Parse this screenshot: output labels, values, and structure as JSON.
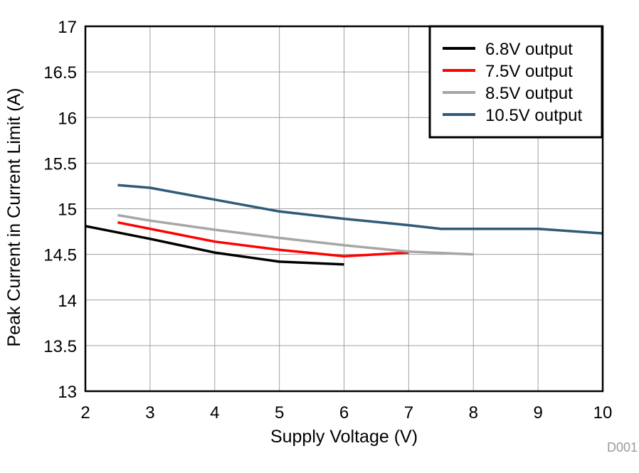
{
  "chart_data": {
    "type": "line",
    "title": "",
    "xlabel": "Supply Voltage (V)",
    "ylabel": "Peak Current in Current Limit (A)",
    "xlim": [
      2,
      10
    ],
    "ylim": [
      13,
      17
    ],
    "x_ticks": [
      2,
      3,
      4,
      5,
      6,
      7,
      8,
      9,
      10
    ],
    "y_ticks": [
      13,
      13.5,
      14,
      14.5,
      15,
      15.5,
      16,
      16.5,
      17
    ],
    "grid": true,
    "legend_position": "top-right",
    "figure_id": "D001",
    "series": [
      {
        "name": "6.8V output",
        "color": "#000000",
        "x": [
          2,
          2.5,
          3,
          4,
          5,
          6
        ],
        "y": [
          14.81,
          14.74,
          14.67,
          14.52,
          14.42,
          14.39
        ]
      },
      {
        "name": "7.5V output",
        "color": "#ff0000",
        "x": [
          2.5,
          3,
          4,
          5,
          6,
          7
        ],
        "y": [
          14.85,
          14.78,
          14.64,
          14.55,
          14.48,
          14.52
        ]
      },
      {
        "name": "8.5V output",
        "color": "#a6a6a6",
        "x": [
          2.5,
          3,
          4,
          5,
          6,
          7,
          8
        ],
        "y": [
          14.93,
          14.87,
          14.77,
          14.68,
          14.6,
          14.53,
          14.5
        ]
      },
      {
        "name": "10.5V output",
        "color": "#2f5a78",
        "x": [
          2.5,
          3,
          4,
          5,
          6,
          7,
          7.5,
          8,
          9,
          10
        ],
        "y": [
          15.26,
          15.23,
          15.1,
          14.97,
          14.89,
          14.82,
          14.78,
          14.78,
          14.78,
          14.73
        ]
      }
    ]
  }
}
